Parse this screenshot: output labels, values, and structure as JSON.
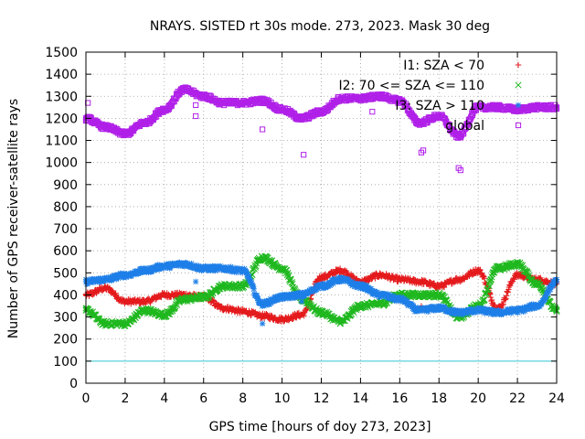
{
  "chart_data": {
    "type": "scatter",
    "title": "NRAYS. SISTED rt 30s mode. 273, 2023. Mask 30 deg",
    "xlabel": "GPS time [hours of doy 273, 2023]",
    "ylabel": "Number of GPS receiver-satellite rays",
    "xlim": [
      0,
      24
    ],
    "ylim": [
      0,
      1500
    ],
    "xticks": [
      0,
      2,
      4,
      6,
      8,
      10,
      12,
      14,
      16,
      18,
      20,
      22,
      24
    ],
    "yticks": [
      0,
      100,
      200,
      300,
      400,
      500,
      600,
      700,
      800,
      900,
      1000,
      1100,
      1200,
      1300,
      1400,
      1500
    ],
    "grid": true,
    "legend_position": "top-right",
    "threshold_line": {
      "y": 100,
      "color": "#33c8d8"
    },
    "series": [
      {
        "name": "I1: SZA < 70",
        "marker": "+",
        "color": "#e41a1c",
        "x": [
          0,
          1,
          2,
          3,
          4,
          5,
          6,
          7,
          8,
          9,
          10,
          11,
          12,
          13,
          14,
          15,
          16,
          17,
          18,
          19,
          20,
          21,
          22,
          23,
          24
        ],
        "y": [
          400,
          430,
          370,
          370,
          400,
          400,
          390,
          340,
          325,
          305,
          290,
          310,
          480,
          510,
          460,
          490,
          470,
          460,
          440,
          470,
          510,
          340,
          490,
          470,
          450
        ],
        "outliers": [
          [
            17.1,
            350
          ]
        ]
      },
      {
        "name": "I2: 70 <= SZA <= 110",
        "marker": "x",
        "color": "#1fb81f",
        "x": [
          0,
          1,
          2,
          3,
          4,
          5,
          6,
          7,
          8,
          9,
          10,
          11,
          12,
          13,
          14,
          15,
          16,
          17,
          18,
          19,
          20,
          21,
          22,
          23,
          24
        ],
        "y": [
          330,
          270,
          270,
          330,
          310,
          380,
          390,
          440,
          440,
          570,
          520,
          380,
          320,
          280,
          350,
          360,
          400,
          400,
          400,
          300,
          350,
          520,
          540,
          450,
          330
        ],
        "outliers": []
      },
      {
        "name": "I3: SZA > 110",
        "marker": "*",
        "color": "#1e7fe8",
        "x": [
          0,
          1,
          2,
          3,
          4,
          5,
          6,
          7,
          8,
          9,
          10,
          11,
          12,
          13,
          14,
          15,
          16,
          17,
          18,
          19,
          20,
          21,
          22,
          23,
          24
        ],
        "y": [
          460,
          470,
          490,
          510,
          530,
          540,
          520,
          520,
          510,
          360,
          390,
          400,
          440,
          470,
          440,
          400,
          380,
          330,
          340,
          320,
          330,
          320,
          330,
          350,
          460
        ],
        "outliers": [
          [
            5.6,
            460
          ],
          [
            9.0,
            270
          ],
          [
            11.0,
            370
          ]
        ]
      },
      {
        "name": "global",
        "marker": "square",
        "color": "#b020e8",
        "x": [
          0,
          1,
          2,
          3,
          4,
          5,
          6,
          7,
          8,
          9,
          10,
          11,
          12,
          13,
          14,
          15,
          16,
          17,
          18,
          19,
          20,
          21,
          22,
          23,
          24
        ],
        "y": [
          1200,
          1160,
          1130,
          1180,
          1240,
          1330,
          1300,
          1270,
          1270,
          1280,
          1240,
          1200,
          1230,
          1290,
          1290,
          1300,
          1280,
          1180,
          1210,
          1120,
          1250,
          1250,
          1240,
          1250,
          1250
        ],
        "outliers": [
          [
            0.1,
            1270
          ],
          [
            5.6,
            1210
          ],
          [
            5.6,
            1260
          ],
          [
            9.0,
            1150
          ],
          [
            11.1,
            1035
          ],
          [
            14.6,
            1230
          ],
          [
            17.1,
            1045
          ],
          [
            17.2,
            1055
          ],
          [
            19.0,
            975
          ],
          [
            19.1,
            965
          ]
        ]
      }
    ]
  }
}
